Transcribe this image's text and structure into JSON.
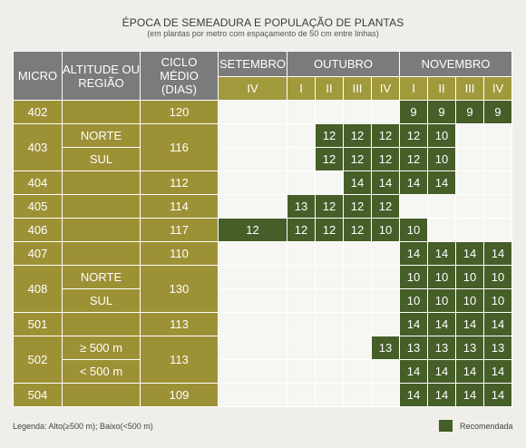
{
  "title": "ÉPOCA DE SEMEADURA E POPULAÇÃO DE PLANTAS",
  "subtitle": "(em plantas por metro com espaçamento de 50 cm entre linhas)",
  "headers": {
    "micro": "MICRO",
    "altitude": "ALTITUDE OU REGIÃO",
    "ciclo": "CICLO MÉDIO (DIAS)",
    "months": [
      "SETEMBRO",
      "OUTUBRO",
      "NOVEMBRO"
    ]
  },
  "periods": [
    "IV",
    "I",
    "II",
    "III",
    "IV",
    "I",
    "II",
    "III",
    "IV"
  ],
  "rows": [
    {
      "micro": "402",
      "region": "",
      "ciclo": "120",
      "values": [
        "",
        "",
        "",
        "",
        "",
        "9",
        "9",
        "9",
        "9"
      ]
    },
    {
      "micro": "403",
      "region": "NORTE",
      "ciclo": "116",
      "values": [
        "",
        "",
        "12",
        "12",
        "12",
        "12",
        "10",
        "",
        ""
      ]
    },
    {
      "micro": "",
      "region": "SUL",
      "ciclo": "",
      "values": [
        "",
        "",
        "12",
        "12",
        "12",
        "12",
        "10",
        "",
        ""
      ]
    },
    {
      "micro": "404",
      "region": "",
      "ciclo": "112",
      "values": [
        "",
        "",
        "",
        "14",
        "14",
        "14",
        "14",
        "",
        ""
      ]
    },
    {
      "micro": "405",
      "region": "",
      "ciclo": "114",
      "values": [
        "",
        "13",
        "12",
        "12",
        "12",
        "",
        "",
        "",
        ""
      ]
    },
    {
      "micro": "406",
      "region": "",
      "ciclo": "117",
      "values": [
        "12",
        "12",
        "12",
        "12",
        "10",
        "10",
        "",
        "",
        ""
      ]
    },
    {
      "micro": "407",
      "region": "",
      "ciclo": "110",
      "values": [
        "",
        "",
        "",
        "",
        "",
        "14",
        "14",
        "14",
        "14"
      ]
    },
    {
      "micro": "408",
      "region": "NORTE",
      "ciclo": "130",
      "values": [
        "",
        "",
        "",
        "",
        "",
        "10",
        "10",
        "10",
        "10"
      ]
    },
    {
      "micro": "",
      "region": "SUL",
      "ciclo": "",
      "values": [
        "",
        "",
        "",
        "",
        "",
        "10",
        "10",
        "10",
        "10"
      ]
    },
    {
      "micro": "501",
      "region": "",
      "ciclo": "113",
      "values": [
        "",
        "",
        "",
        "",
        "",
        "14",
        "14",
        "14",
        "14"
      ]
    },
    {
      "micro": "502",
      "region": "≥ 500 m",
      "ciclo": "113",
      "values": [
        "",
        "",
        "",
        "",
        "13",
        "13",
        "13",
        "13",
        "13"
      ]
    },
    {
      "micro": "",
      "region": "< 500 m",
      "ciclo": "",
      "values": [
        "",
        "",
        "",
        "",
        "",
        "14",
        "14",
        "14",
        "14"
      ]
    },
    {
      "micro": "504",
      "region": "",
      "ciclo": "109",
      "values": [
        "",
        "",
        "",
        "",
        "",
        "14",
        "14",
        "14",
        "14"
      ]
    }
  ],
  "legend": {
    "note": "Legenda: Alto(≥500 m); Baixo(<500 m)",
    "recommended_label": "Recomendada",
    "recommended_color": "#465e28"
  }
}
